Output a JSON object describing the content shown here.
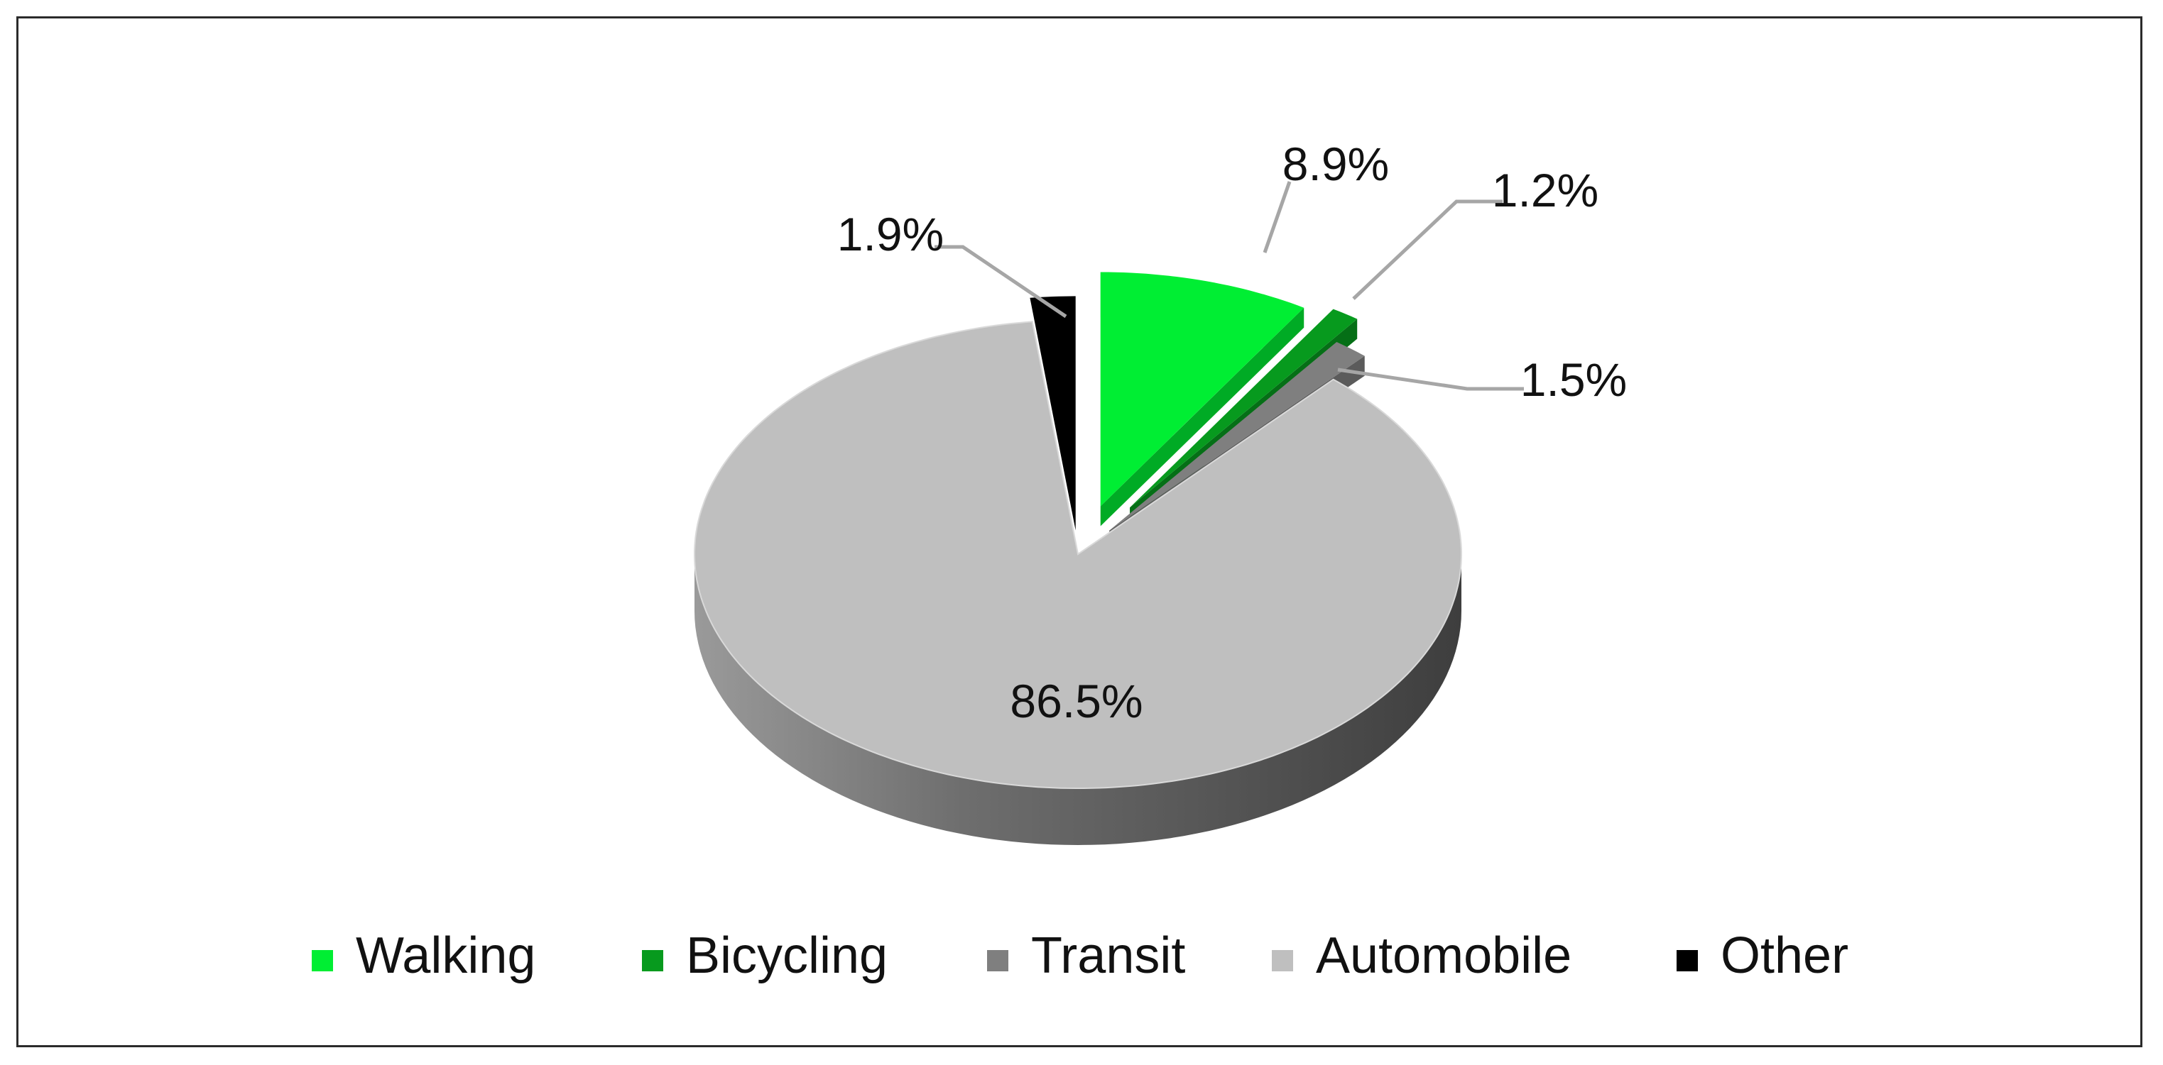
{
  "chart_data": {
    "type": "pie",
    "style": "3d exploded",
    "categories": [
      "Walking",
      "Bicycling",
      "Transit",
      "Automobile",
      "Other"
    ],
    "values": [
      8.9,
      1.2,
      1.5,
      86.5,
      1.9
    ],
    "data_labels": [
      "8.9%",
      "1.2%",
      "1.5%",
      "86.5%",
      "1.9%"
    ],
    "colors": [
      "#00ee33",
      "#079a1e",
      "#7f7f7f",
      "#bfbfbf",
      "#000000"
    ],
    "exploded": [
      "Walking",
      "Bicycling",
      "Transit",
      "Other"
    ],
    "legend_position": "bottom",
    "title": ""
  }
}
